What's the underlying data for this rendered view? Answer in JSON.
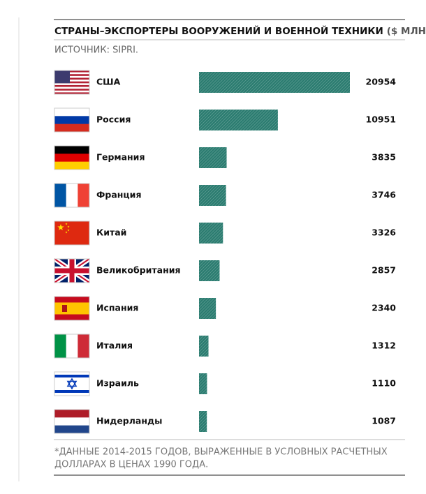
{
  "chart_data": {
    "type": "bar",
    "title": "СТРАНЫ–ЭКСПОРТЕРЫ ВООРУЖЕНИЙ И ВОЕННОЙ ТЕХНИКИ",
    "title_unit": "($ МЛН)*",
    "source": "ИСТОЧНИК: SIPRI.",
    "categories": [
      "США",
      "Россия",
      "Германия",
      "Франция",
      "Китай",
      "Великобритания",
      "Испания",
      "Италия",
      "Израиль",
      "Нидерланды"
    ],
    "values": [
      20954,
      10951,
      3835,
      3746,
      3326,
      2857,
      2340,
      1312,
      1110,
      1087
    ],
    "color": "#2b7c70",
    "footnote": [
      "*ДАННЫЕ 2014-2015 ГОДОВ, ВЫРАЖЕННЫЕ В УСЛОВНЫХ РАСЧЕТНЫХ",
      "ДОЛЛАРАХ В ЦЕНАХ 1990 ГОДА."
    ]
  }
}
